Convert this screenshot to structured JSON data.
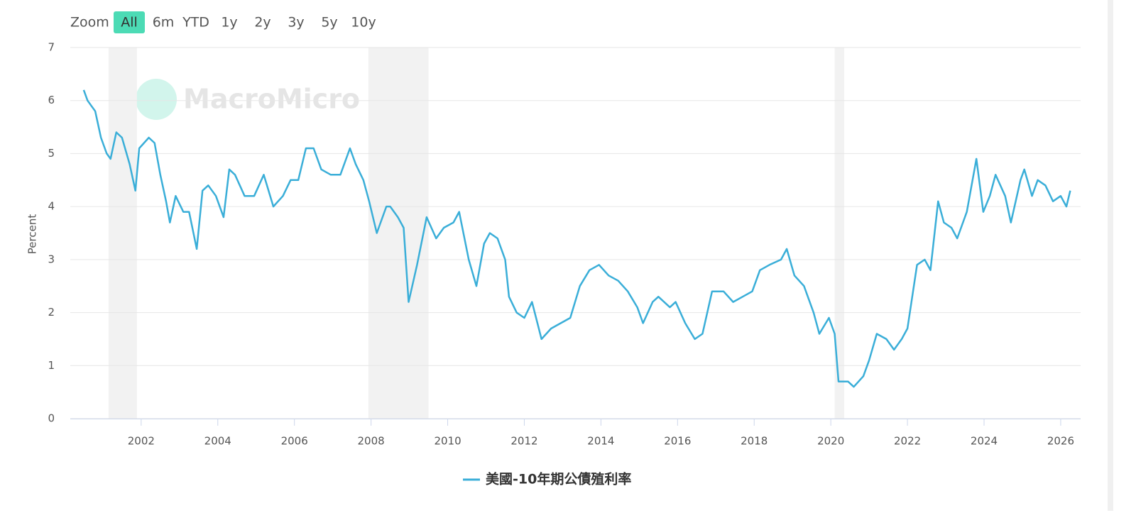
{
  "range_selector": {
    "label": "Zoom",
    "buttons": [
      "All",
      "6m",
      "YTD",
      "1y",
      "2y",
      "3y",
      "5y",
      "10y"
    ],
    "selected": 0
  },
  "watermark": "MacroMicro",
  "chart_data": {
    "type": "line",
    "ylabel": "Percent",
    "grid": true,
    "xlim": [
      2000.15,
      2026.52
    ],
    "ylim": [
      0,
      7
    ],
    "xticks": [
      2002,
      2004,
      2006,
      2008,
      2010,
      2012,
      2014,
      2016,
      2018,
      2020,
      2022,
      2024,
      2026
    ],
    "yticks": [
      0,
      1,
      2,
      3,
      4,
      5,
      6,
      7
    ],
    "recessions": [
      [
        2001.15,
        2001.89
      ],
      [
        2007.93,
        2009.5
      ],
      [
        2020.1,
        2020.35
      ]
    ],
    "x": [
      2000.5,
      2000.6,
      2000.8,
      2000.95,
      2001.1,
      2001.2,
      2001.35,
      2001.5,
      2001.7,
      2001.85,
      2001.95,
      2002.2,
      2002.35,
      2002.5,
      2002.65,
      2002.75,
      2002.9,
      2003.1,
      2003.25,
      2003.45,
      2003.6,
      2003.75,
      2003.95,
      2004.15,
      2004.3,
      2004.45,
      2004.7,
      2004.95,
      2005.2,
      2005.45,
      2005.7,
      2005.9,
      2006.1,
      2006.3,
      2006.5,
      2006.7,
      2006.95,
      2007.2,
      2007.45,
      2007.6,
      2007.8,
      2007.95,
      2008.15,
      2008.4,
      2008.5,
      2008.7,
      2008.85,
      2008.98,
      2009.2,
      2009.45,
      2009.7,
      2009.9,
      2010.15,
      2010.3,
      2010.55,
      2010.75,
      2010.95,
      2011.1,
      2011.3,
      2011.5,
      2011.6,
      2011.8,
      2012.0,
      2012.2,
      2012.45,
      2012.7,
      2012.95,
      2013.2,
      2013.45,
      2013.7,
      2013.95,
      2014.2,
      2014.45,
      2014.7,
      2014.95,
      2015.1,
      2015.35,
      2015.5,
      2015.8,
      2015.95,
      2016.2,
      2016.45,
      2016.65,
      2016.9,
      2017.2,
      2017.45,
      2017.7,
      2017.95,
      2018.15,
      2018.4,
      2018.7,
      2018.85,
      2019.05,
      2019.3,
      2019.55,
      2019.7,
      2019.95,
      2020.1,
      2020.2,
      2020.45,
      2020.6,
      2020.85,
      2021.0,
      2021.2,
      2021.45,
      2021.65,
      2021.85,
      2022.0,
      2022.25,
      2022.45,
      2022.6,
      2022.8,
      2022.95,
      2023.15,
      2023.3,
      2023.55,
      2023.8,
      2023.98,
      2024.15,
      2024.3,
      2024.55,
      2024.7,
      2024.95,
      2025.05,
      2025.25,
      2025.4,
      2025.6,
      2025.8,
      2026.0,
      2026.15,
      2026.25
    ],
    "series": [
      {
        "name": "美國-10年期公債殖利率",
        "color": "#3aaed8",
        "values": [
          6.2,
          6.0,
          5.8,
          5.3,
          5.0,
          4.9,
          5.4,
          5.3,
          4.8,
          4.3,
          5.1,
          5.3,
          5.2,
          4.6,
          4.1,
          3.7,
          4.2,
          3.9,
          3.9,
          3.2,
          4.3,
          4.4,
          4.2,
          3.8,
          4.7,
          4.6,
          4.2,
          4.2,
          4.6,
          4.0,
          4.2,
          4.5,
          4.5,
          5.1,
          5.1,
          4.7,
          4.6,
          4.6,
          5.1,
          4.8,
          4.5,
          4.1,
          3.5,
          4.0,
          4.0,
          3.8,
          3.6,
          2.2,
          2.9,
          3.8,
          3.4,
          3.6,
          3.7,
          3.9,
          3.0,
          2.5,
          3.3,
          3.5,
          3.4,
          3.0,
          2.3,
          2.0,
          1.9,
          2.2,
          1.5,
          1.7,
          1.8,
          1.9,
          2.5,
          2.8,
          2.9,
          2.7,
          2.6,
          2.4,
          2.1,
          1.8,
          2.2,
          2.3,
          2.1,
          2.2,
          1.8,
          1.5,
          1.6,
          2.4,
          2.4,
          2.2,
          2.3,
          2.4,
          2.8,
          2.9,
          3.0,
          3.2,
          2.7,
          2.5,
          2.0,
          1.6,
          1.9,
          1.6,
          0.7,
          0.7,
          0.6,
          0.8,
          1.1,
          1.6,
          1.5,
          1.3,
          1.5,
          1.7,
          2.9,
          3.0,
          2.8,
          4.1,
          3.7,
          3.6,
          3.4,
          3.9,
          4.9,
          3.9,
          4.2,
          4.6,
          4.2,
          3.7,
          4.5,
          4.7,
          4.2,
          4.5,
          4.4,
          4.1,
          4.2,
          4.0,
          4.3
        ]
      }
    ]
  }
}
